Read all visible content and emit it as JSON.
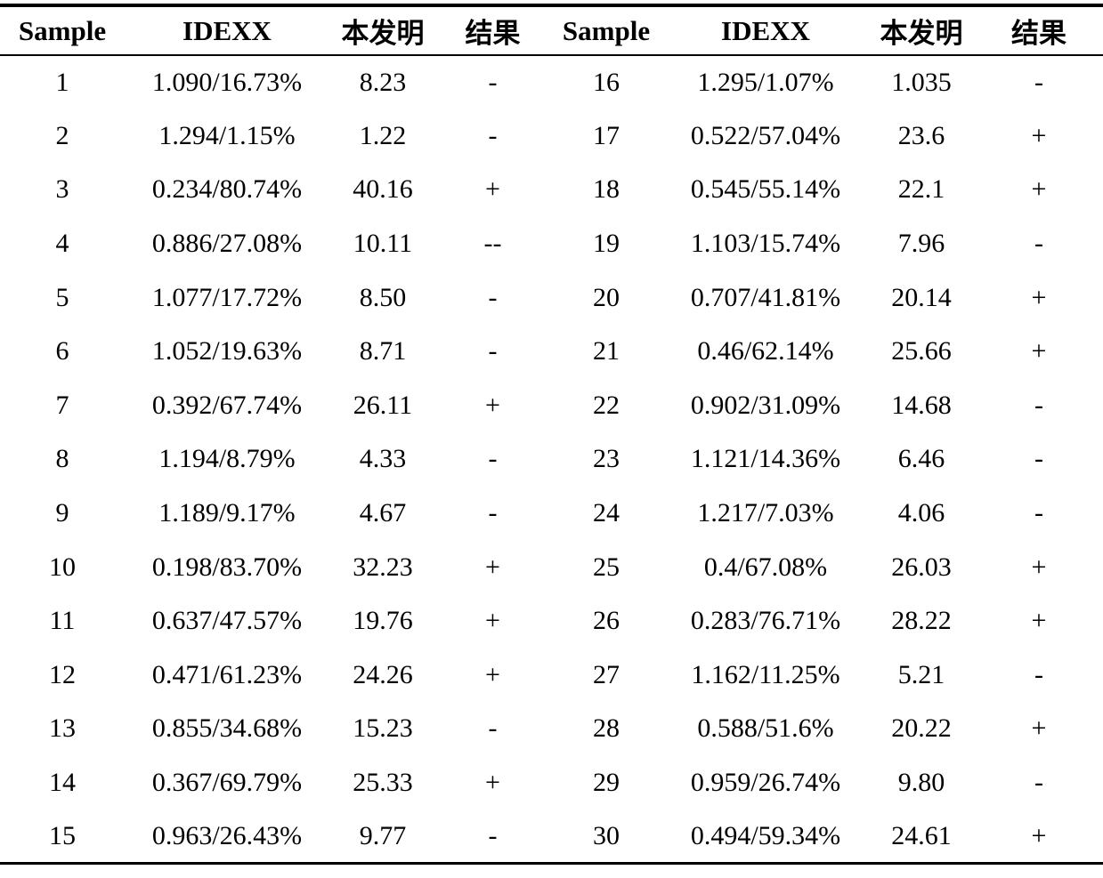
{
  "table": {
    "columns": [
      "Sample",
      "IDEXX",
      "本发明",
      "结果",
      "Sample",
      "IDEXX",
      "本发明",
      "结果"
    ],
    "rows": [
      [
        "1",
        "1.090/16.73%",
        "8.23",
        "-",
        "16",
        "1.295/1.07%",
        "1.035",
        "-"
      ],
      [
        "2",
        "1.294/1.15%",
        "1.22",
        "-",
        "17",
        "0.522/57.04%",
        "23.6",
        "+"
      ],
      [
        "3",
        "0.234/80.74%",
        "40.16",
        "+",
        "18",
        "0.545/55.14%",
        "22.1",
        "+"
      ],
      [
        "4",
        "0.886/27.08%",
        "10.11",
        "--",
        "19",
        "1.103/15.74%",
        "7.96",
        "-"
      ],
      [
        "5",
        "1.077/17.72%",
        "8.50",
        "-",
        "20",
        "0.707/41.81%",
        "20.14",
        "+"
      ],
      [
        "6",
        "1.052/19.63%",
        "8.71",
        "-",
        "21",
        "0.46/62.14%",
        "25.66",
        "+"
      ],
      [
        "7",
        "0.392/67.74%",
        "26.11",
        "+",
        "22",
        "0.902/31.09%",
        "14.68",
        "-"
      ],
      [
        "8",
        "1.194/8.79%",
        "4.33",
        "-",
        "23",
        "1.121/14.36%",
        "6.46",
        "-"
      ],
      [
        "9",
        "1.189/9.17%",
        "4.67",
        "-",
        "24",
        "1.217/7.03%",
        "4.06",
        "-"
      ],
      [
        "10",
        "0.198/83.70%",
        "32.23",
        "+",
        "25",
        "0.4/67.08%",
        "26.03",
        "+"
      ],
      [
        "11",
        "0.637/47.57%",
        "19.76",
        "+",
        "26",
        "0.283/76.71%",
        "28.22",
        "+"
      ],
      [
        "12",
        "0.471/61.23%",
        "24.26",
        "+",
        "27",
        "1.162/11.25%",
        "5.21",
        "-"
      ],
      [
        "13",
        "0.855/34.68%",
        "15.23",
        "-",
        "28",
        "0.588/51.6%",
        "20.22",
        "+"
      ],
      [
        "14",
        "0.367/69.79%",
        "25.33",
        "+",
        "29",
        "0.959/26.74%",
        "9.80",
        "-"
      ],
      [
        "15",
        "0.963/26.43%",
        "9.77",
        "-",
        "30",
        "0.494/59.34%",
        "24.61",
        "+"
      ]
    ]
  }
}
